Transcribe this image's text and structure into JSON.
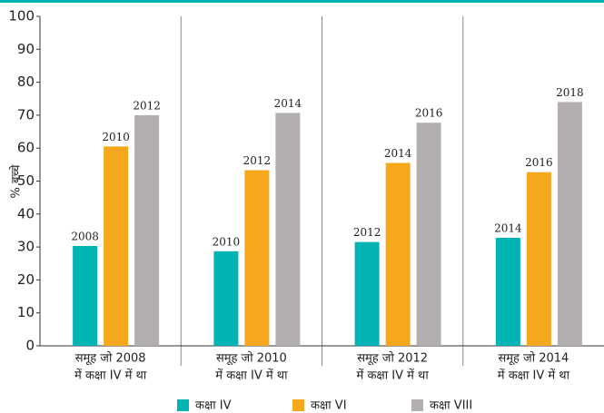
{
  "chart_data": {
    "type": "bar",
    "ylabel": "% बच्चे",
    "categories": [
      [
        "समूह जो 2008",
        "में कक्षा IV में था"
      ],
      [
        "समूह जो 2010",
        "में कक्षा IV में था"
      ],
      [
        "समूह जो 2012",
        "में कक्षा IV में था"
      ],
      [
        "समूह जो 2014",
        "में कक्षा IV में था"
      ]
    ],
    "series": [
      {
        "name": "कक्षा IV",
        "color": "#00b4b4",
        "values": [
          30.3,
          28.7,
          31.5,
          32.8
        ],
        "year_labels": [
          "2008",
          "2010",
          "2012",
          "2014"
        ]
      },
      {
        "name": "कक्षा VI",
        "color": "#f6a81c",
        "values": [
          60.5,
          53.3,
          55.5,
          52.7
        ],
        "year_labels": [
          "2010",
          "2012",
          "2014",
          "2016"
        ]
      },
      {
        "name": "कक्षा VIII",
        "color": "#b4afaf",
        "values": [
          70,
          70.7,
          67.7,
          74
        ],
        "year_labels": [
          "2012",
          "2014",
          "2016",
          "2018"
        ]
      }
    ],
    "ylim": [
      0,
      100
    ],
    "yticks": [
      0,
      10,
      20,
      30,
      40,
      50,
      60,
      70,
      80,
      90,
      100
    ],
    "grid": "x",
    "legend": "bottom"
  }
}
